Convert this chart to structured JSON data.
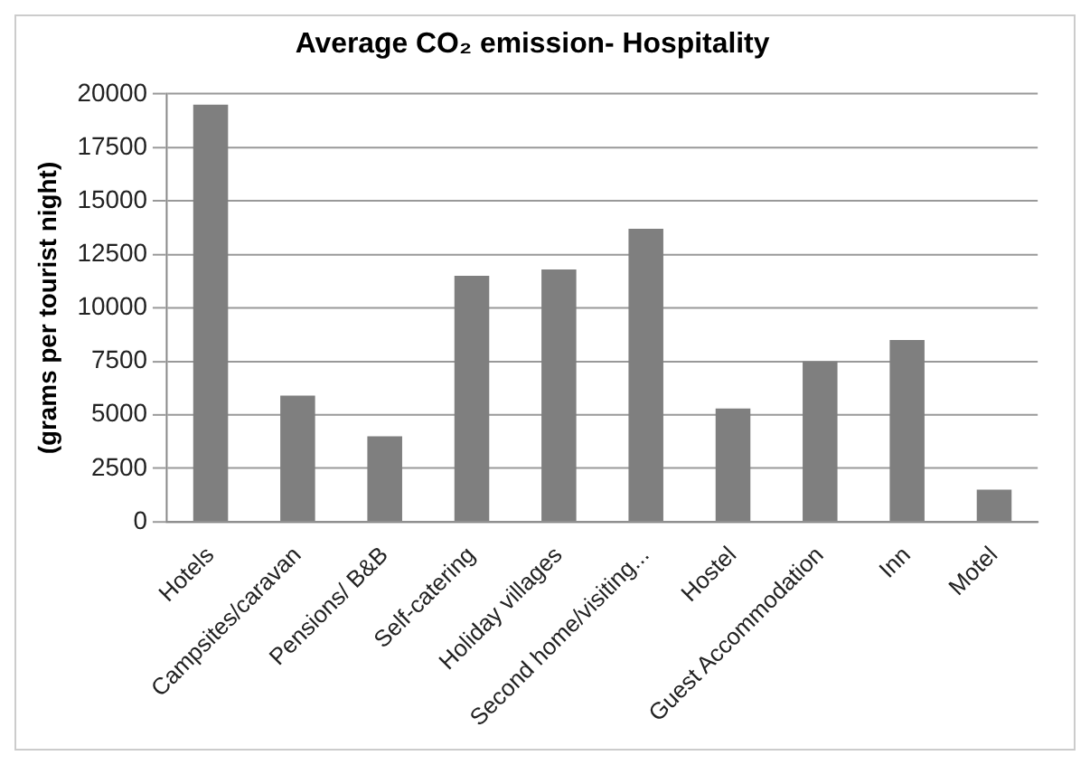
{
  "chart_data": {
    "type": "bar",
    "title": "Average CO₂ emission- Hospitality",
    "ylabel": "(grams per tourist night)",
    "categories": [
      "Hotels",
      "Campsites/caravan",
      "Pensions/ B&B",
      "Self-catering",
      "Holiday villages",
      "Second home/visiting...",
      "Hostel",
      "Guest Accommodation",
      "Inn",
      "Motel"
    ],
    "values": [
      19500,
      5900,
      4000,
      11500,
      11800,
      13700,
      5300,
      7500,
      8500,
      1500
    ],
    "color": "#7f7f7f",
    "ylim": [
      0,
      20000
    ],
    "yticks": [
      0,
      2500,
      5000,
      7500,
      10000,
      12500,
      15000,
      17500,
      20000
    ],
    "grid": "y",
    "legend": false
  }
}
